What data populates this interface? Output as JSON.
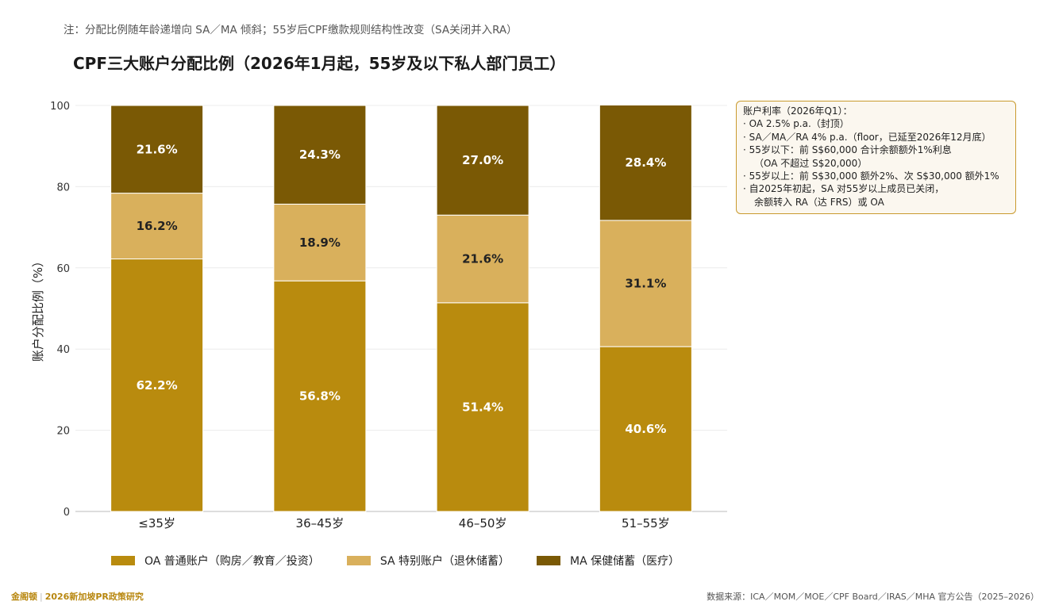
{
  "note": "注：分配比例随年龄递增向 SA／MA 倾斜；55岁后CPF缴款规则结构性改变（SA关闭并入RA）",
  "colors": {
    "oa": "#b98b0e",
    "sa": "#d9b05c",
    "ma": "#7a5905"
  },
  "chart_data": {
    "type": "bar",
    "stacked": true,
    "title": "CPF三大账户分配比例（2026年1月起，55岁及以下私人部门员工）",
    "xlabel": "",
    "ylabel": "账户分配比例（%）",
    "ylim": [
      0,
      100
    ],
    "yticks": [
      0,
      20,
      40,
      60,
      80,
      100
    ],
    "grid": true,
    "legend_position": "bottom",
    "categories": [
      "≤35岁",
      "36–45岁",
      "46–50岁",
      "51–55岁"
    ],
    "series": [
      {
        "name": "OA 普通账户（购房／教育／投资）",
        "values": [
          62.2,
          56.8,
          51.4,
          40.6
        ],
        "labels": [
          "62.2%",
          "56.8%",
          "51.4%",
          "40.6%"
        ]
      },
      {
        "name": "SA 特别账户（退休储蓄）",
        "values": [
          16.2,
          18.9,
          21.6,
          31.1
        ],
        "labels": [
          "16.2%",
          "18.9%",
          "21.6%",
          "31.1%"
        ]
      },
      {
        "name": "MA 保健储蓄（医疗）",
        "values": [
          21.6,
          24.3,
          27.0,
          28.4
        ],
        "labels": [
          "21.6%",
          "24.3%",
          "27.0%",
          "28.4%"
        ]
      }
    ]
  },
  "infobox": {
    "title": "账户利率（2026年Q1）：",
    "lines": [
      "· OA 2.5% p.a.（封顶）",
      "· SA／MA／RA 4% p.a.（floor，已延至2026年12月底）",
      "· 55岁以下：前 S$60,000 合计余额额外1%利息",
      "（OA 不超过 S$20,000）",
      "· 55岁以上：前 S$30,000 额外2%、次 S$30,000 额外1%",
      "· 自2025年初起，SA 对55岁以上成员已关闭，",
      "余额转入 RA（达 FRS）或 OA"
    ]
  },
  "footer": {
    "brand": "金阁顿",
    "report": "2026新加坡PR政策研究",
    "source": "数据来源：ICA／MOM／MOE／CPF Board／IRAS／MHA 官方公告（2025–2026）"
  }
}
